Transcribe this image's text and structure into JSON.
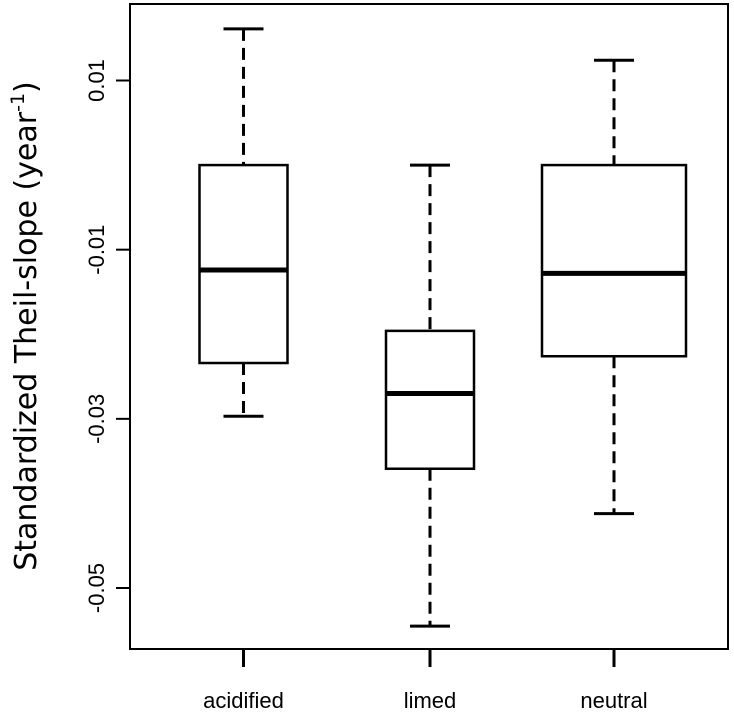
{
  "chart_data": {
    "type": "box",
    "title": "",
    "xlabel": "",
    "ylabel": {
      "main": "Standardized Theil-slope (year",
      "superscript": "-1",
      "close": ")"
    },
    "ylim": [
      -0.058,
      0.019
    ],
    "yticks": [
      0.01,
      -0.01,
      -0.03,
      -0.05
    ],
    "ytick_labels": [
      "0.01",
      "-0.01",
      "-0.03",
      "-0.05"
    ],
    "categories": [
      "acidified",
      "limed",
      "neutral"
    ],
    "boxes": [
      {
        "name": "acidified",
        "whisker_low": -0.0297,
        "q1": -0.0234,
        "median": -0.0124,
        "q3": 0.0,
        "whisker_high": 0.0161
      },
      {
        "name": "limed",
        "whisker_low": -0.0545,
        "q1": -0.0359,
        "median": -0.027,
        "q3": -0.0196,
        "whisker_high": 0.0
      },
      {
        "name": "neutral",
        "whisker_low": -0.0412,
        "q1": -0.0226,
        "median": -0.0128,
        "q3": 0.0,
        "whisker_high": 0.0124
      }
    ],
    "grid": false,
    "legend": "none"
  }
}
